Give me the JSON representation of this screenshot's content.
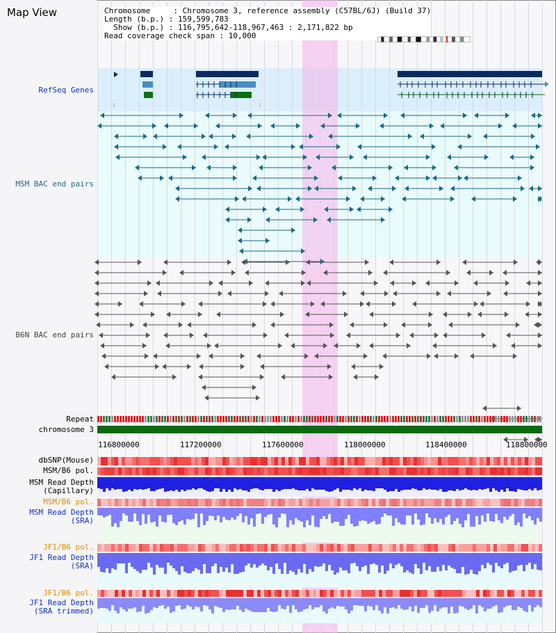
{
  "header": {
    "title": "Map View",
    "info_lines": [
      "Chromosome     : Chromosome 3, reference assembly (C57BL/6J) (Build 37)",
      "Length (b.p.) : 159,599,783",
      "  Show (b.p.) : 116,795,642-118,967,463 : 2,171,822 bp",
      "Read coverage check span : 10,000"
    ]
  },
  "tracks": {
    "refseq": "RefSeq Genes",
    "msm_bac": "MSM BAC end pairs",
    "b6n_bac": "B6N BAC end pairs",
    "repeat": "Repeat",
    "chromosome": "chromosome 3",
    "dbsnp": "dbSNP(Mouse)",
    "msm_b6_pol": "MSM/B6 pol.",
    "msm_read_depth_cap_1": "MSM Read Depth",
    "msm_read_depth_cap_2": "(Capillary)",
    "msm_b6_pol_2": "MSM/B6 pol.",
    "msm_read_depth_sra_1": "MSM Read Depth",
    "msm_read_depth_sra_2": "(SRA)",
    "jf1_b6_pol": "JF1/B6 pol.",
    "jf1_read_depth_1": "JF1 Read Depth",
    "jf1_read_depth_2": "(SRA)",
    "jf1_b6_pol_2": "JF1/B6 pol.",
    "jf1_read_depth_trim_1": "JF1 Read Depth",
    "jf1_read_depth_trim_2": "(SRA trimmed)"
  },
  "axis": {
    "ticks": [
      "116800000",
      "117200000",
      "117600000",
      "118000000",
      "118400000",
      "118800000"
    ]
  },
  "colors": {
    "highlight": "#f5b4eb",
    "gene_dark": "#0a2a60",
    "gene_mid": "#4a8ec0",
    "gene_green": "#0a7010",
    "msm_teal": "#1a6a8a",
    "b6n_gray": "#555555",
    "depth_blue": "#2020e0",
    "depth_light": "#8080ff"
  }
}
